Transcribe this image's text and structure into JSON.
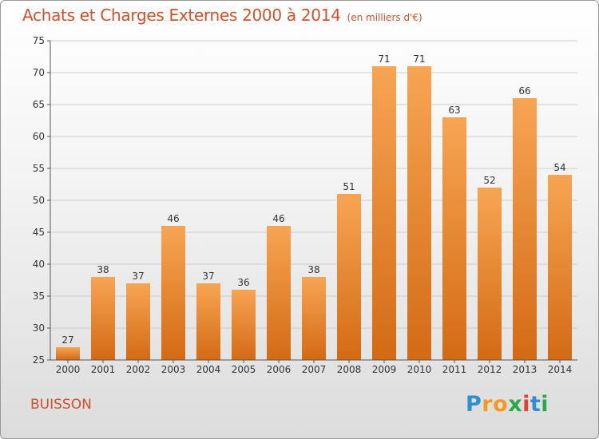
{
  "title": "Achats et Charges Externes 2000 à 2014",
  "unit_note": "(en milliers d'€)",
  "commune": "BUISSON",
  "logo": {
    "letters": [
      "P",
      "r",
      "o",
      "x",
      "i",
      "t",
      "i"
    ],
    "colors": [
      "#2e8fd0",
      "#f29a1f",
      "#f29a1f",
      "#2aa84a",
      "#e8402b",
      "#2e8fd0",
      "#2aa84a"
    ]
  },
  "colors": {
    "accent": "#d0512a",
    "bar_top": "#f7a553",
    "bar_bottom": "#d36a14",
    "grid": "#cccccc"
  },
  "chart_data": {
    "type": "bar",
    "categories": [
      "2000",
      "2001",
      "2002",
      "2003",
      "2004",
      "2005",
      "2006",
      "2007",
      "2008",
      "2009",
      "2010",
      "2011",
      "2012",
      "2013",
      "2014"
    ],
    "values": [
      27,
      38,
      37,
      46,
      37,
      36,
      46,
      38,
      51,
      71,
      71,
      63,
      52,
      66,
      54
    ],
    "ylim": [
      25,
      75
    ],
    "yticks": [
      25,
      30,
      35,
      40,
      45,
      50,
      55,
      60,
      65,
      70,
      75
    ],
    "grid": "horizontal",
    "xlabel": "",
    "ylabel": ""
  }
}
